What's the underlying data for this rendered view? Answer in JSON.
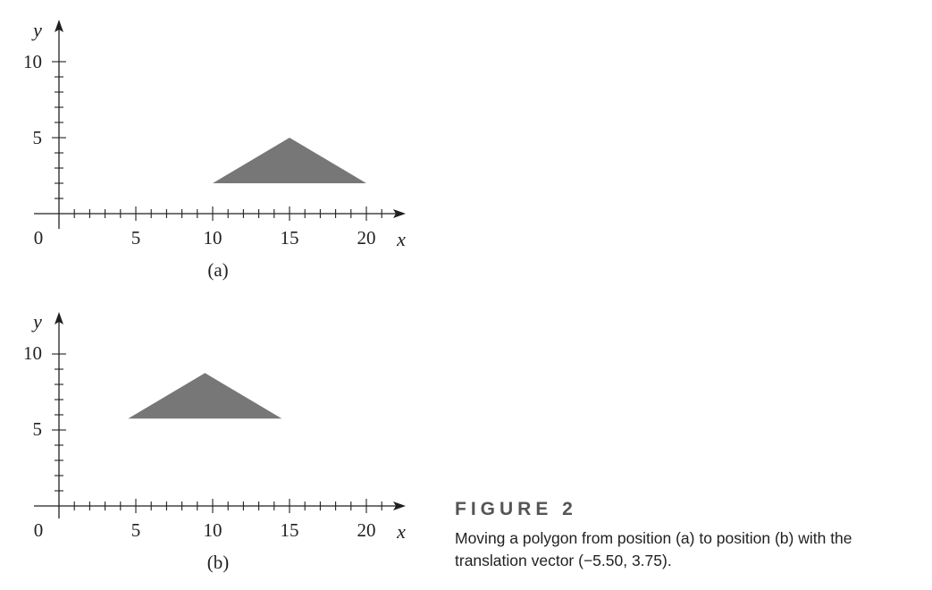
{
  "colors": {
    "axis": "#231f20",
    "polygon_fill": "#777777",
    "caption_title": "#555555"
  },
  "panels": [
    {
      "panel_label": "(a)",
      "x_axis_label": "x",
      "y_axis_label": "y",
      "x_tick_labels": [
        "0",
        "5",
        "10",
        "15",
        "20"
      ],
      "y_tick_labels": [
        "5",
        "10"
      ],
      "polygon": {
        "vertices": [
          [
            10,
            2
          ],
          [
            15,
            5
          ],
          [
            20,
            2
          ]
        ]
      }
    },
    {
      "panel_label": "(b)",
      "x_axis_label": "x",
      "y_axis_label": "y",
      "x_tick_labels": [
        "0",
        "5",
        "10",
        "15",
        "20"
      ],
      "y_tick_labels": [
        "5",
        "10"
      ],
      "polygon": {
        "vertices": [
          [
            4.5,
            5.75
          ],
          [
            9.5,
            8.75
          ],
          [
            14.5,
            5.75
          ]
        ]
      }
    }
  ],
  "caption": {
    "title": "FIGURE 2",
    "text": "Moving a polygon from position (a) to position (b) with the translation vector (−5.50, 3.75)."
  }
}
